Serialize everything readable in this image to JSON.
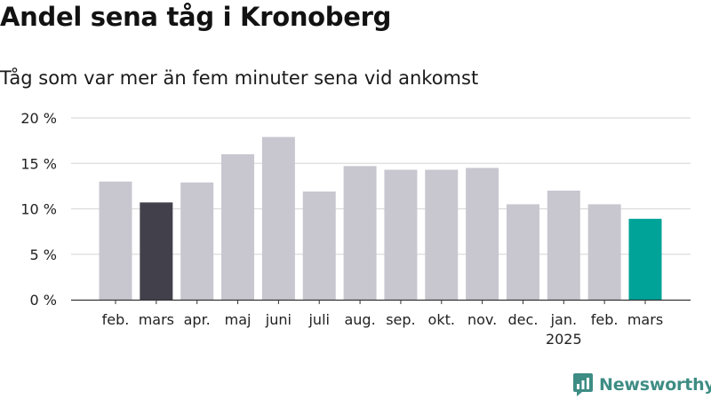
{
  "title": "Andel sena tåg i Kronoberg",
  "subtitle": "Tåg som var mer än fem minuter sena vid ankomst",
  "brand": {
    "name": "Newsworthy",
    "color": "#3e8d84"
  },
  "chart_data": {
    "type": "bar",
    "categories": [
      "feb.",
      "mars",
      "apr.",
      "maj",
      "juni",
      "juli",
      "aug.",
      "sep.",
      "okt.",
      "nov.",
      "dec.",
      "jan.",
      "feb.",
      "mars"
    ],
    "category_sublabels": [
      "",
      "",
      "",
      "",
      "",
      "",
      "",
      "",
      "",
      "",
      "",
      "2025",
      "",
      ""
    ],
    "values": [
      13.0,
      10.7,
      12.9,
      16.0,
      17.9,
      11.9,
      14.7,
      14.3,
      14.3,
      14.5,
      10.5,
      12.0,
      10.5,
      8.9
    ],
    "bar_colors": [
      "#c8c7d0",
      "#41404b",
      "#c8c7d0",
      "#c8c7d0",
      "#c8c7d0",
      "#c8c7d0",
      "#c8c7d0",
      "#c8c7d0",
      "#c8c7d0",
      "#c8c7d0",
      "#c8c7d0",
      "#c8c7d0",
      "#c8c7d0",
      "#00a398"
    ],
    "yticks": [
      0,
      5,
      10,
      15,
      20
    ],
    "ytick_labels": [
      "0 %",
      "5 %",
      "10 %",
      "15 %",
      "20 %"
    ],
    "ylim": [
      0,
      20
    ],
    "grid": true,
    "title": "Andel sena tåg i Kronoberg",
    "subtitle": "Tåg som var mer än fem minuter sena vid ankomst",
    "xlabel": "",
    "ylabel": ""
  }
}
